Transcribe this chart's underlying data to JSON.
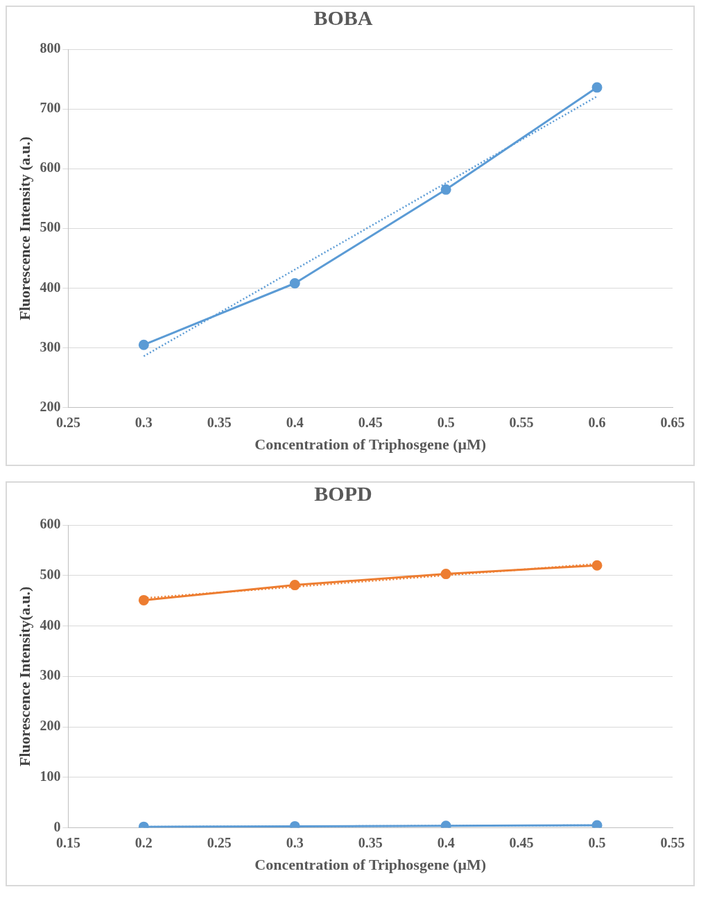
{
  "chart_data": [
    {
      "type": "line",
      "title": "BOBA",
      "xlabel": "Concentration of Triphosgene (μM)",
      "ylabel": "Fluorescence Intensity (a.u.)",
      "x": [
        0.3,
        0.4,
        0.5,
        0.6
      ],
      "xlim": [
        0.25,
        0.65
      ],
      "xticks": [
        0.25,
        0.3,
        0.35,
        0.4,
        0.45,
        0.5,
        0.55,
        0.6,
        0.65
      ],
      "ylim": [
        200,
        800
      ],
      "yticks": [
        200,
        300,
        400,
        500,
        600,
        700,
        800
      ],
      "grid": "y",
      "legend": false,
      "marker": "circle",
      "line_style": "solid",
      "series": [
        {
          "color": "#5b9bd5",
          "values": [
            305,
            408,
            565,
            736
          ]
        },
        {
          "color": "#5b9bd5",
          "x": [
            0.3,
            0.6
          ],
          "values": [
            286,
            721
          ],
          "marker": "none",
          "line_style": "dotted"
        }
      ]
    },
    {
      "type": "line",
      "title": "BOPD",
      "xlabel": "Concentration of Triphosgene (μM)",
      "ylabel": "Fluorescence Intensity(a.u.)",
      "x": [
        0.2,
        0.3,
        0.4,
        0.5
      ],
      "xlim": [
        0.15,
        0.55
      ],
      "xticks": [
        0.15,
        0.2,
        0.25,
        0.3,
        0.35,
        0.4,
        0.45,
        0.5,
        0.55
      ],
      "ylim": [
        0,
        600
      ],
      "yticks": [
        0,
        100,
        200,
        300,
        400,
        500,
        600
      ],
      "grid": "y",
      "legend": false,
      "marker": "circle",
      "line_style": "solid",
      "series": [
        {
          "color": "#ed7d31",
          "values": [
            451,
            481,
            503,
            520
          ]
        },
        {
          "color": "#ed7d31",
          "x": [
            0.2,
            0.5
          ],
          "values": [
            455,
            523
          ],
          "marker": "none",
          "line_style": "dotted"
        },
        {
          "color": "#5b9bd5",
          "values": [
            2,
            3,
            4,
            5
          ]
        },
        {
          "color": "#5b9bd5",
          "x": [
            0.2,
            0.5
          ],
          "values": [
            2,
            5
          ],
          "marker": "none",
          "line_style": "dotted"
        }
      ]
    }
  ]
}
